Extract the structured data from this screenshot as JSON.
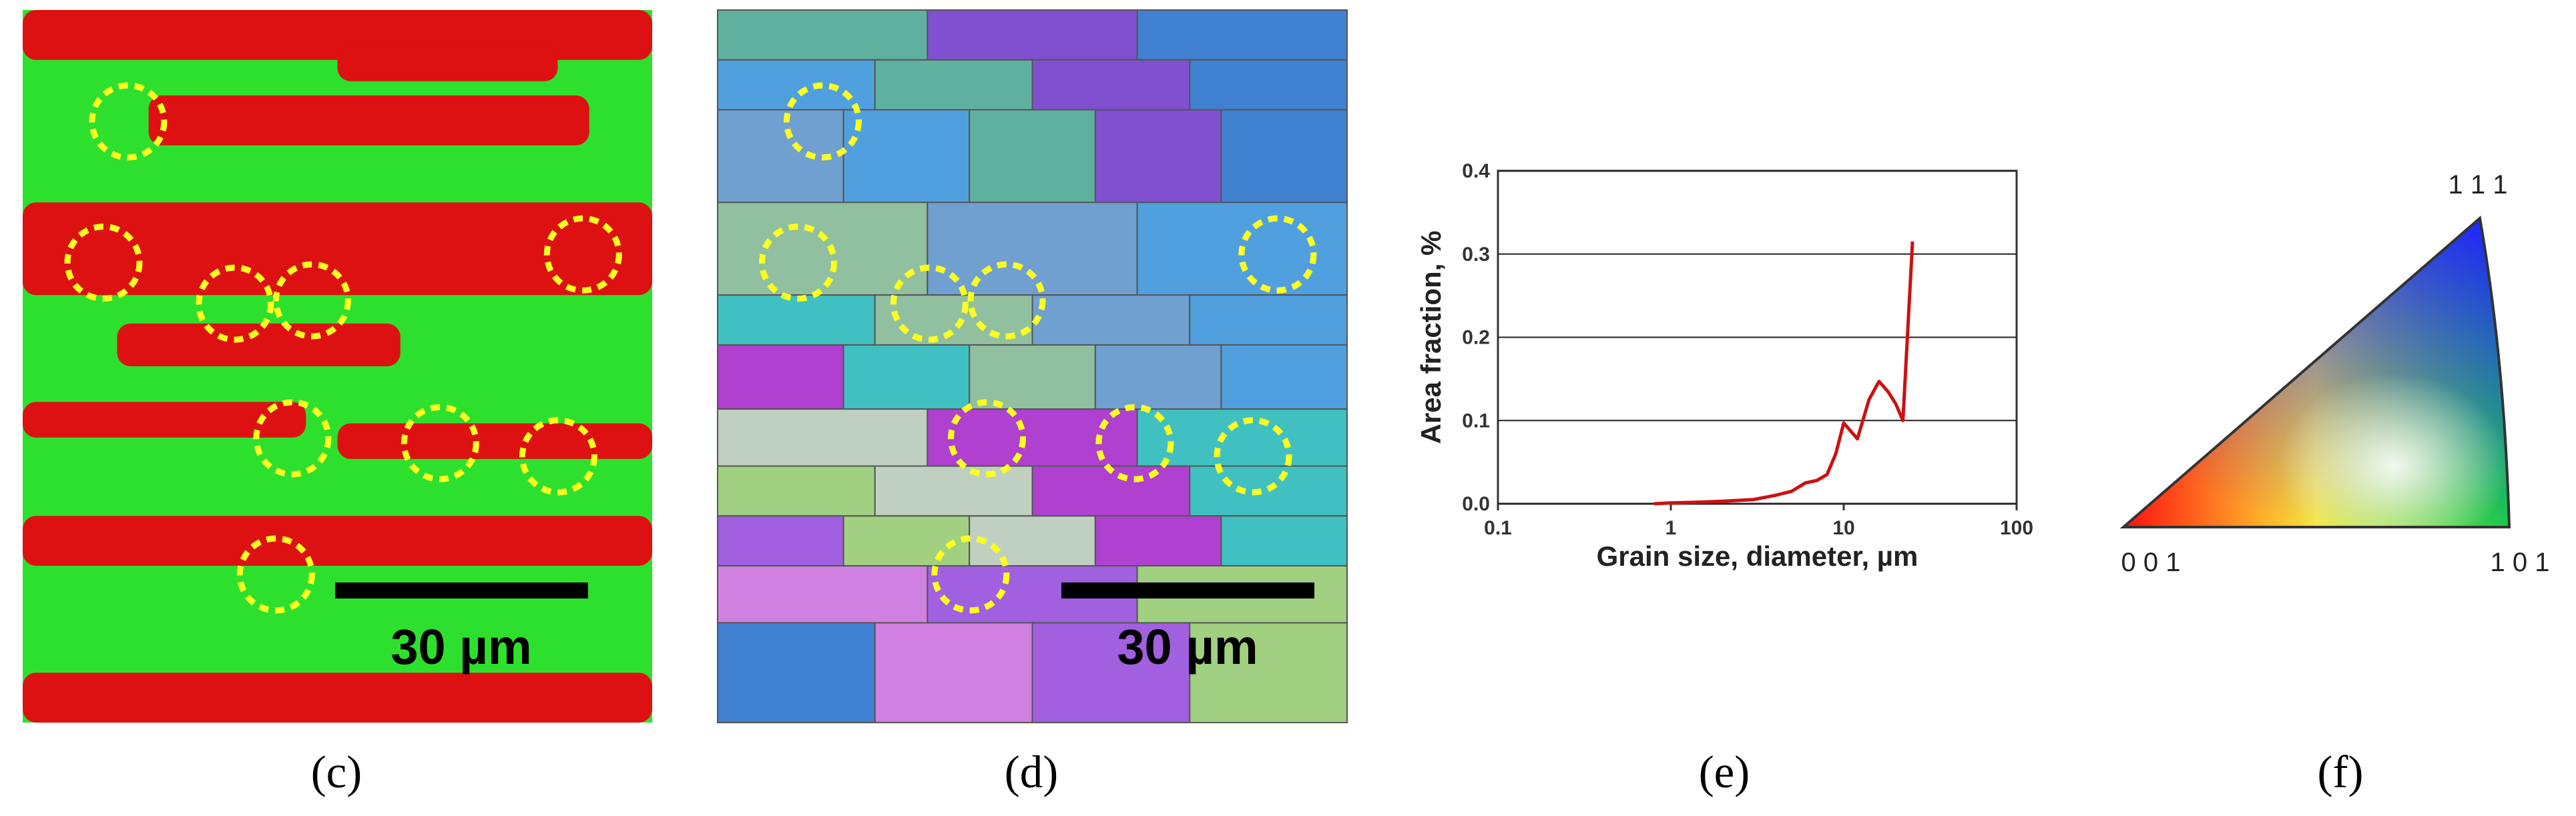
{
  "panels": {
    "c": {
      "label": "(c)",
      "scale_bar": "30 µm"
    },
    "d": {
      "label": "(d)",
      "scale_bar": "30 µm"
    },
    "e": {
      "label": "(e)"
    },
    "f": {
      "label": "(f)",
      "corners": [
        "0 0 1",
        "1 0 1",
        "1 1 1"
      ]
    }
  },
  "chart_data": {
    "type": "line",
    "xlabel": "Grain size, diameter, µm",
    "ylabel": "Area fraction, %",
    "xscale": "log",
    "x": [
      0.8,
      1,
      1.5,
      2,
      3,
      4,
      5,
      6,
      7,
      8,
      9,
      10,
      12,
      14,
      16,
      18,
      20,
      22,
      25
    ],
    "values": [
      0,
      0.001,
      0.002,
      0.003,
      0.005,
      0.01,
      0.015,
      0.025,
      0.028,
      0.035,
      0.06,
      0.097,
      0.078,
      0.125,
      0.147,
      0.135,
      0.12,
      0.1,
      0.315
    ],
    "color": "#cc1111",
    "xlim": [
      0.1,
      100
    ],
    "xticks": [
      0.1,
      1,
      10,
      100
    ],
    "ylim": [
      0,
      0.4
    ],
    "yticks": [
      {
        "value": 0,
        "label": "0.0"
      },
      0.1,
      0.2,
      0.3,
      0.4
    ],
    "grid": true
  }
}
